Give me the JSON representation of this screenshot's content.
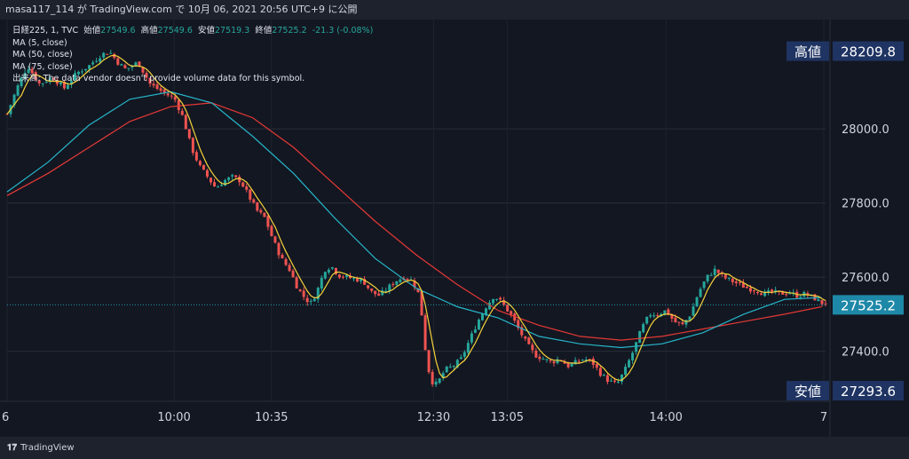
{
  "header": {
    "caption": "masa117_114 が TradingView.com で 10月 06, 2021 20:56 UTC+9 に公開"
  },
  "legend": {
    "symbol": "日経225, 1, TVC",
    "open_label": "始値",
    "open": "27549.6",
    "high_label": "高値",
    "high": "27549.6",
    "low_label": "安値",
    "low": "27519.3",
    "close_label": "終値",
    "close": "27525.2",
    "change": "-21.3 (-0.08%)",
    "ma5": "MA (5, close)",
    "ma50": "MA (50, close)",
    "ma75": "MA (75, close)",
    "volume": "出来高: The data vendor doesn't provide volume data for this symbol."
  },
  "price_scale": {
    "high_label": "高値",
    "high_value": "28209.8",
    "last_value": "27525.2",
    "low_label": "安値",
    "low_value": "27293.6"
  },
  "footer": {
    "brand": "TradingView"
  },
  "colors": {
    "background": "#131722",
    "up": "#26a69a",
    "down": "#ef5350",
    "ma5": "#f5d33a",
    "ma50": "#26b5c9",
    "ma75": "#e53935",
    "label_bg": "#1f3462"
  },
  "chart_data": {
    "type": "candlestick",
    "ylim": [
      27265,
      28295
    ],
    "y_ticks": [
      28000.0,
      27800.0,
      27600.0,
      27400.0
    ],
    "y_tick_labels": [
      "28000.0",
      "27800.0",
      "27600.0",
      "27400.0"
    ],
    "x_tick_labels": [
      "6",
      "10:00",
      "10:35",
      "12:30",
      "13:05",
      "14:00",
      "7"
    ],
    "x_tick_fraction": [
      0.0,
      0.204,
      0.323,
      0.521,
      0.611,
      0.805,
      1.0
    ],
    "price_path": [
      [
        0.0,
        28040
      ],
      [
        0.012,
        28110
      ],
      [
        0.025,
        28170
      ],
      [
        0.04,
        28120
      ],
      [
        0.055,
        28140
      ],
      [
        0.07,
        28110
      ],
      [
        0.085,
        28150
      ],
      [
        0.1,
        28170
      ],
      [
        0.115,
        28200
      ],
      [
        0.125,
        28209
      ],
      [
        0.135,
        28180
      ],
      [
        0.145,
        28160
      ],
      [
        0.16,
        28180
      ],
      [
        0.175,
        28120
      ],
      [
        0.19,
        28100
      ],
      [
        0.205,
        28080
      ],
      [
        0.215,
        28030
      ],
      [
        0.225,
        27950
      ],
      [
        0.235,
        27900
      ],
      [
        0.245,
        27870
      ],
      [
        0.255,
        27840
      ],
      [
        0.265,
        27860
      ],
      [
        0.275,
        27870
      ],
      [
        0.285,
        27860
      ],
      [
        0.295,
        27820
      ],
      [
        0.305,
        27780
      ],
      [
        0.315,
        27760
      ],
      [
        0.325,
        27700
      ],
      [
        0.335,
        27650
      ],
      [
        0.345,
        27620
      ],
      [
        0.355,
        27570
      ],
      [
        0.365,
        27540
      ],
      [
        0.372,
        27530
      ],
      [
        0.38,
        27570
      ],
      [
        0.388,
        27620
      ],
      [
        0.396,
        27630
      ],
      [
        0.405,
        27605
      ],
      [
        0.415,
        27600
      ],
      [
        0.425,
        27595
      ],
      [
        0.435,
        27590
      ],
      [
        0.445,
        27560
      ],
      [
        0.455,
        27550
      ],
      [
        0.465,
        27570
      ],
      [
        0.475,
        27590
      ],
      [
        0.485,
        27600
      ],
      [
        0.495,
        27590
      ],
      [
        0.502,
        27560
      ],
      [
        0.508,
        27480
      ],
      [
        0.512,
        27380
      ],
      [
        0.518,
        27320
      ],
      [
        0.525,
        27310
      ],
      [
        0.535,
        27350
      ],
      [
        0.545,
        27360
      ],
      [
        0.555,
        27380
      ],
      [
        0.565,
        27430
      ],
      [
        0.575,
        27480
      ],
      [
        0.585,
        27520
      ],
      [
        0.595,
        27550
      ],
      [
        0.605,
        27530
      ],
      [
        0.615,
        27500
      ],
      [
        0.625,
        27460
      ],
      [
        0.635,
        27420
      ],
      [
        0.645,
        27390
      ],
      [
        0.655,
        27380
      ],
      [
        0.665,
        27370
      ],
      [
        0.675,
        27380
      ],
      [
        0.685,
        27360
      ],
      [
        0.695,
        27370
      ],
      [
        0.705,
        27380
      ],
      [
        0.715,
        27370
      ],
      [
        0.725,
        27340
      ],
      [
        0.735,
        27320
      ],
      [
        0.745,
        27310
      ],
      [
        0.755,
        27350
      ],
      [
        0.765,
        27400
      ],
      [
        0.775,
        27460
      ],
      [
        0.785,
        27500
      ],
      [
        0.795,
        27500
      ],
      [
        0.805,
        27510
      ],
      [
        0.815,
        27480
      ],
      [
        0.825,
        27470
      ],
      [
        0.835,
        27500
      ],
      [
        0.845,
        27560
      ],
      [
        0.855,
        27600
      ],
      [
        0.865,
        27620
      ],
      [
        0.875,
        27600
      ],
      [
        0.885,
        27590
      ],
      [
        0.895,
        27580
      ],
      [
        0.905,
        27570
      ],
      [
        0.915,
        27565
      ],
      [
        0.925,
        27555
      ],
      [
        0.935,
        27560
      ],
      [
        0.945,
        27555
      ],
      [
        0.955,
        27560
      ],
      [
        0.965,
        27550
      ],
      [
        0.975,
        27555
      ],
      [
        0.985,
        27545
      ],
      [
        0.995,
        27530
      ]
    ],
    "ma50_path": [
      [
        0.0,
        27830
      ],
      [
        0.05,
        27910
      ],
      [
        0.1,
        28010
      ],
      [
        0.15,
        28080
      ],
      [
        0.2,
        28100
      ],
      [
        0.25,
        28070
      ],
      [
        0.3,
        27980
      ],
      [
        0.35,
        27880
      ],
      [
        0.4,
        27760
      ],
      [
        0.45,
        27650
      ],
      [
        0.5,
        27570
      ],
      [
        0.55,
        27520
      ],
      [
        0.6,
        27490
      ],
      [
        0.65,
        27440
      ],
      [
        0.7,
        27420
      ],
      [
        0.75,
        27410
      ],
      [
        0.8,
        27420
      ],
      [
        0.85,
        27450
      ],
      [
        0.9,
        27500
      ],
      [
        0.95,
        27540
      ],
      [
        0.995,
        27545
      ]
    ],
    "ma75_path": [
      [
        0.0,
        27820
      ],
      [
        0.05,
        27880
      ],
      [
        0.1,
        27950
      ],
      [
        0.15,
        28020
      ],
      [
        0.2,
        28060
      ],
      [
        0.25,
        28070
      ],
      [
        0.3,
        28030
      ],
      [
        0.35,
        27950
      ],
      [
        0.4,
        27850
      ],
      [
        0.45,
        27750
      ],
      [
        0.5,
        27660
      ],
      [
        0.55,
        27580
      ],
      [
        0.6,
        27510
      ],
      [
        0.65,
        27470
      ],
      [
        0.7,
        27440
      ],
      [
        0.75,
        27430
      ],
      [
        0.8,
        27440
      ],
      [
        0.85,
        27460
      ],
      [
        0.9,
        27480
      ],
      [
        0.95,
        27500
      ],
      [
        0.995,
        27520
      ]
    ]
  }
}
